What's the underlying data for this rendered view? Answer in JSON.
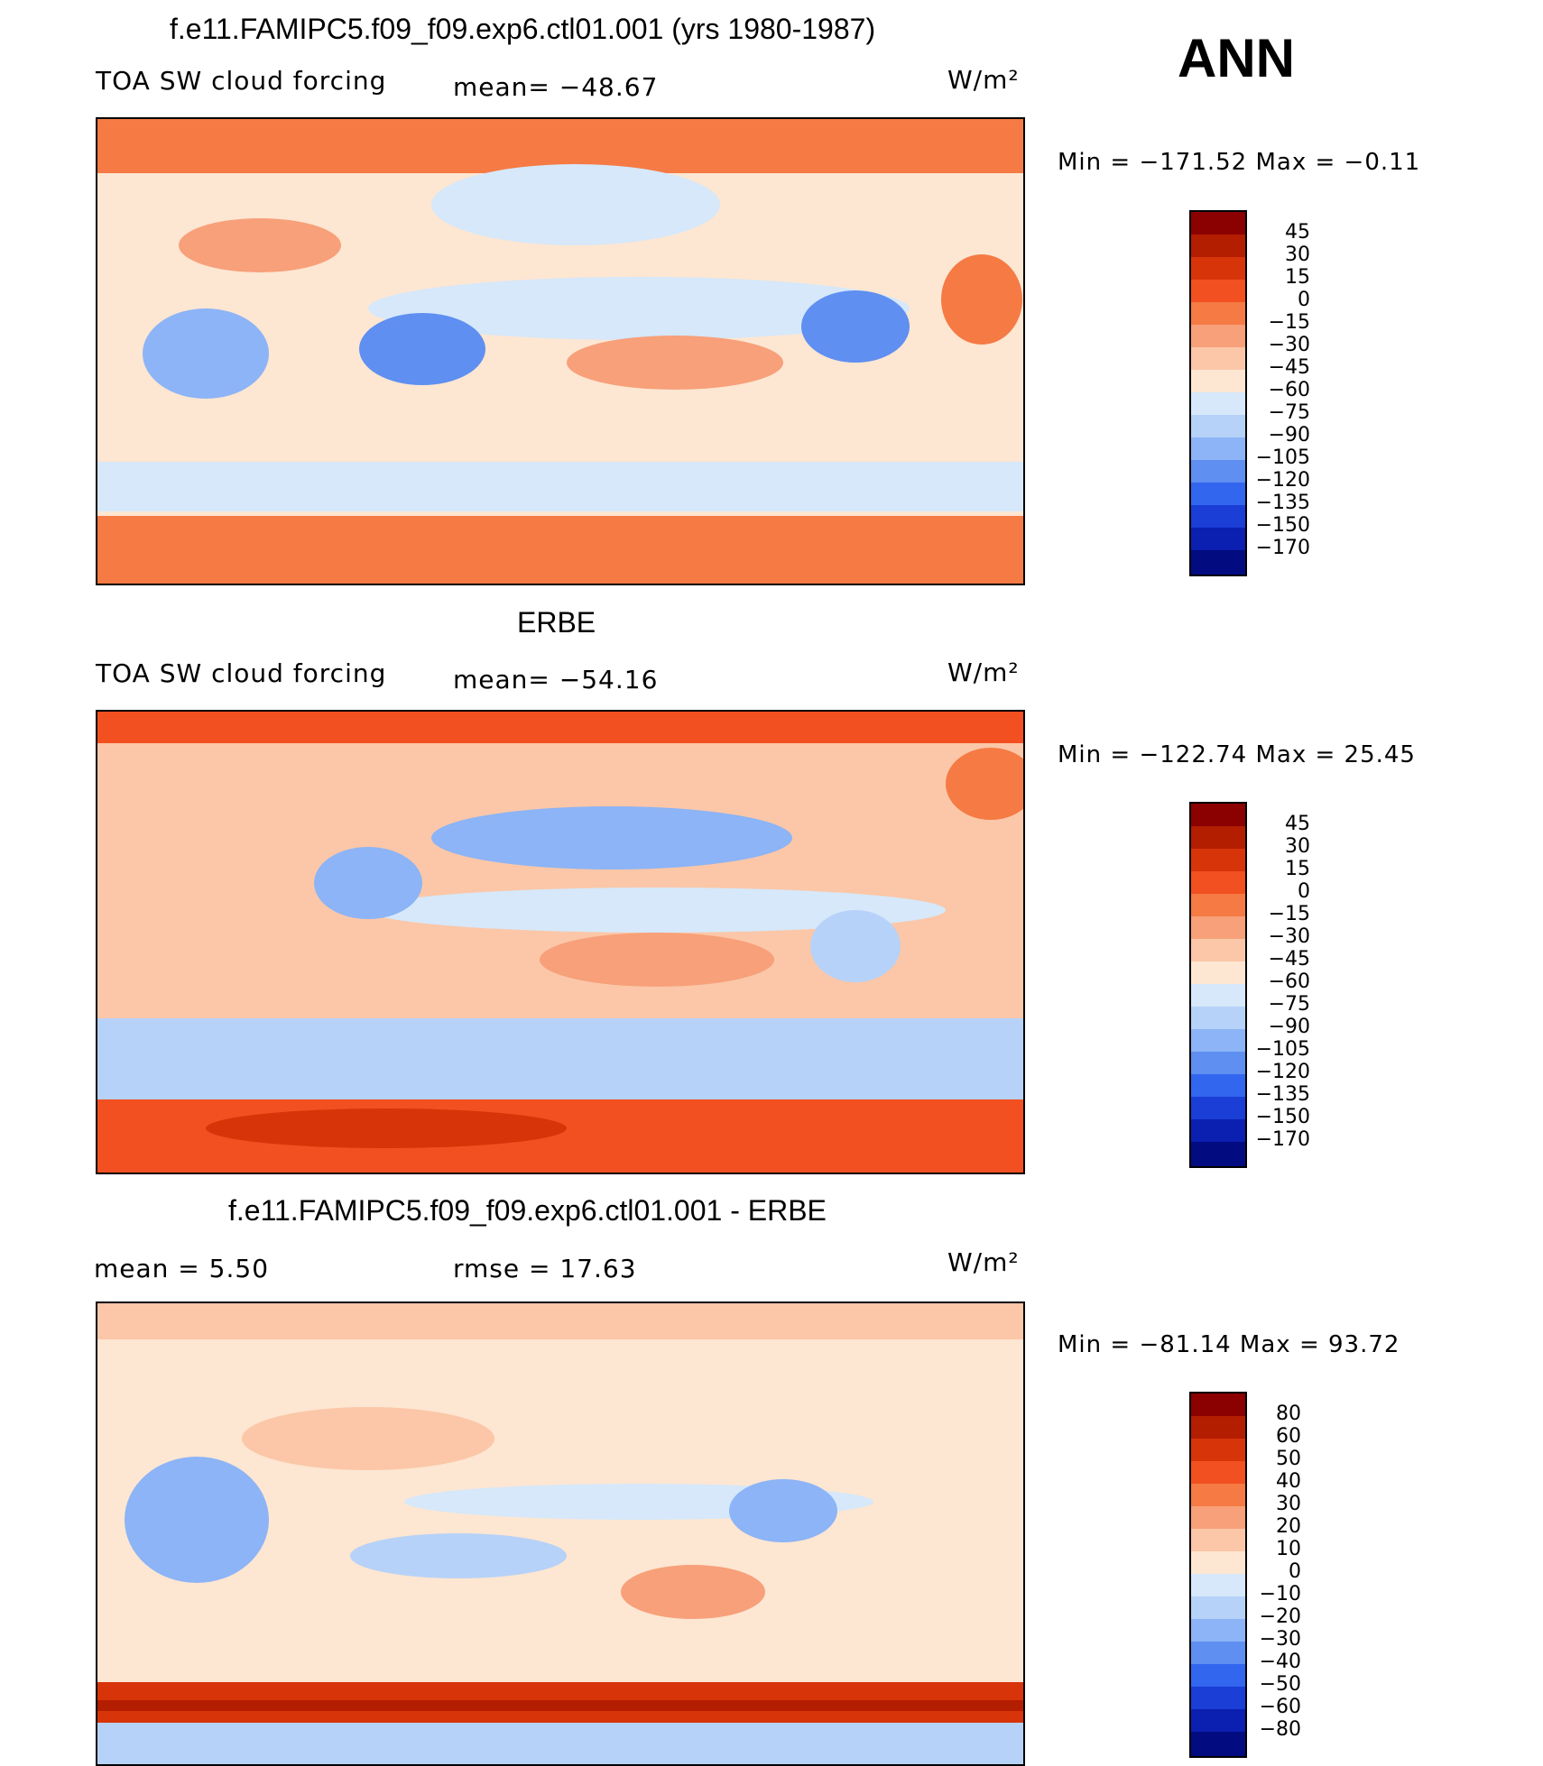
{
  "header": {
    "season": "ANN"
  },
  "panels": [
    {
      "title": "f.e11.FAMIPC5.f09_f09.exp6.ctl01.001 (yrs 1980-1987)",
      "left_label": "TOA SW cloud forcing",
      "center_label": "mean= −48.67",
      "units": "W/m²",
      "minmax": "Min  =  −171.52  Max  =   −0.11"
    },
    {
      "title": "ERBE",
      "left_label": "TOA SW cloud forcing",
      "center_label": "mean= −54.16",
      "units": "W/m²",
      "minmax": "Min  =  −122.74  Max  =   25.45"
    },
    {
      "title": "f.e11.FAMIPC5.f09_f09.exp6.ctl01.001 - ERBE",
      "left_label": "mean  =     5.50",
      "center_label": "rmse  =    17.63",
      "units": "W/m²",
      "minmax": "Min  =  −81.14  Max  =   93.72"
    }
  ],
  "chart_data": [
    {
      "type": "heatmap",
      "title": "f.e11.FAMIPC5.f09_f09.exp6.ctl01.001 (yrs 1980-1987)",
      "variable": "TOA SW cloud forcing",
      "units": "W/m²",
      "mean": -48.67,
      "min": -171.52,
      "max": -0.11,
      "colorbar_levels": [
        "45",
        "30",
        "15",
        "0",
        "−15",
        "−30",
        "−45",
        "−60",
        "−75",
        "−90",
        "−105",
        "−120",
        "−135",
        "−150",
        "−170"
      ],
      "colors": [
        "#8b0000",
        "#b31d00",
        "#d8340a",
        "#f25020",
        "#f57a44",
        "#f7a07a",
        "#fbc7a8",
        "#fde6d2",
        "#d6e8fa",
        "#b6d2f8",
        "#8cb4f6",
        "#5f8ff0",
        "#3366ee",
        "#1a3ed6",
        "#0b1fb0",
        "#020c80"
      ]
    },
    {
      "type": "heatmap",
      "title": "ERBE",
      "variable": "TOA SW cloud forcing",
      "units": "W/m²",
      "mean": -54.16,
      "min": -122.74,
      "max": 25.45,
      "colorbar_levels": [
        "45",
        "30",
        "15",
        "0",
        "−15",
        "−30",
        "−45",
        "−60",
        "−75",
        "−90",
        "−105",
        "−120",
        "−135",
        "−150",
        "−170"
      ],
      "colors": [
        "#8b0000",
        "#b31d00",
        "#d8340a",
        "#f25020",
        "#f57a44",
        "#f7a07a",
        "#fbc7a8",
        "#fde6d2",
        "#d6e8fa",
        "#b6d2f8",
        "#8cb4f6",
        "#5f8ff0",
        "#3366ee",
        "#1a3ed6",
        "#0b1fb0",
        "#020c80"
      ]
    },
    {
      "type": "heatmap",
      "title": "f.e11.FAMIPC5.f09_f09.exp6.ctl01.001 - ERBE",
      "units": "W/m²",
      "mean": 5.5,
      "rmse": 17.63,
      "min": -81.14,
      "max": 93.72,
      "colorbar_levels": [
        "80",
        "60",
        "50",
        "40",
        "30",
        "20",
        "10",
        "0",
        "−10",
        "−20",
        "−30",
        "−40",
        "−50",
        "−60",
        "−80"
      ],
      "colors": [
        "#8b0000",
        "#b31d00",
        "#d8340a",
        "#f25020",
        "#f57a44",
        "#f7a07a",
        "#fbc7a8",
        "#fde6d2",
        "#d6e8fa",
        "#b6d2f8",
        "#8cb4f6",
        "#5f8ff0",
        "#3366ee",
        "#1a3ed6",
        "#0b1fb0",
        "#020c80"
      ]
    }
  ]
}
